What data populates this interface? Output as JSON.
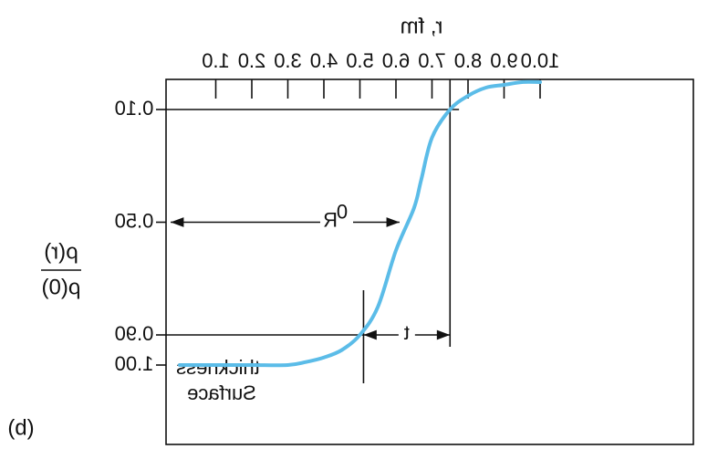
{
  "chart_data": {
    "type": "line",
    "panel_label": "(b)",
    "title": "",
    "xlabel": "r, fm",
    "ylabel_numerator": "ρ(r)",
    "ylabel_denominator": "ρ(0)",
    "x_ticks": [
      "1.0",
      "2.0",
      "3.0",
      "4.0",
      "5.0",
      "6.0",
      "7.0",
      "8.0",
      "9.0",
      "10.0"
    ],
    "y_ticks": [
      "0.10",
      "0.50",
      "0.90",
      "1.00"
    ],
    "y_tick_values": [
      0.1,
      0.5,
      0.9,
      1.0
    ],
    "xlim": [
      0,
      10.0
    ],
    "y_order": "1.00 at bottom, 0.10 at top",
    "series": [
      {
        "color": "#5bbce8",
        "x": [
          0.0,
          1.0,
          2.0,
          3.0,
          3.5,
          4.0,
          4.5,
          5.0,
          5.5,
          6.0,
          6.5,
          6.7,
          7.0,
          7.5,
          8.0,
          8.5,
          9.0,
          9.5,
          10.0
        ],
        "y": [
          1.0,
          1.0,
          1.0,
          1.0,
          0.99,
          0.975,
          0.95,
          0.9,
          0.8,
          0.6,
          0.45,
          0.35,
          0.2,
          0.1,
          0.05,
          0.02,
          0.01,
          0.0,
          0.0
        ]
      }
    ],
    "annotations": {
      "radius_label": "R",
      "radius_subscript": "0",
      "radius_at_y": 0.5,
      "radius_x": 6.1,
      "thickness_label": "t",
      "thickness_from_x": 5.1,
      "thickness_to_x": 7.5,
      "thickness_arrow_y": 0.9,
      "surface_label_line1": "Surface",
      "surface_label_line2": "thickness",
      "surface_marker_x": 5.1,
      "guide_line_0_90_end_x": 5.1,
      "guide_line_0_10_end_x": 7.5,
      "guide_line_0_10_extends_to_x": 7.75
    }
  }
}
